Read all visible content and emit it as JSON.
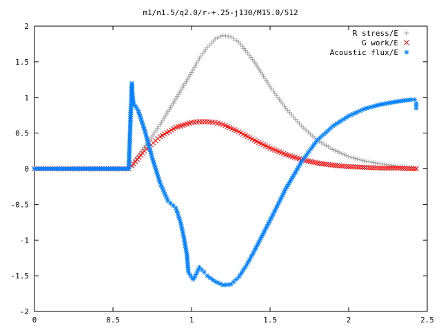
{
  "chart_data": {
    "type": "scatter",
    "title": "m1/n1.5/q2.0/r-+.25-j130/M15.0/512",
    "xlabel": "",
    "ylabel": "",
    "xlim": [
      0,
      2.5
    ],
    "ylim": [
      -2,
      2
    ],
    "xticks": [
      0,
      0.5,
      1,
      1.5,
      2,
      2.5
    ],
    "xtick_labels": [
      "0",
      "0.5",
      "1",
      "1.5",
      "2",
      "2.5"
    ],
    "yticks": [
      -2,
      -1.5,
      -1,
      -0.5,
      0,
      0.5,
      1,
      1.5,
      2
    ],
    "ytick_labels": [
      "-2",
      "-1.5",
      "-1",
      "-0.5",
      "0",
      "0.5",
      "1",
      "1.5",
      "2"
    ],
    "grid": false,
    "legend_position": "top-right",
    "series": [
      {
        "name": "R stress/E",
        "marker": "+",
        "color": "#a0a0a0",
        "x": [
          0,
          0.1,
          0.2,
          0.3,
          0.4,
          0.5,
          0.6,
          0.62,
          0.7,
          0.8,
          0.9,
          1.0,
          1.05,
          1.1,
          1.15,
          1.2,
          1.25,
          1.3,
          1.4,
          1.5,
          1.6,
          1.7,
          1.8,
          1.9,
          2.0,
          2.1,
          2.2,
          2.3,
          2.4,
          2.43
        ],
        "y": [
          0,
          0,
          0,
          0,
          0,
          0,
          0,
          0.05,
          0.3,
          0.62,
          0.98,
          1.35,
          1.55,
          1.7,
          1.82,
          1.87,
          1.85,
          1.78,
          1.5,
          1.15,
          0.85,
          0.6,
          0.4,
          0.27,
          0.17,
          0.11,
          0.07,
          0.04,
          0.02,
          0.01
        ]
      },
      {
        "name": "G work/E",
        "marker": "x",
        "color": "#ff0000",
        "x": [
          0,
          0.1,
          0.2,
          0.3,
          0.4,
          0.5,
          0.6,
          0.62,
          0.7,
          0.8,
          0.9,
          1.0,
          1.05,
          1.1,
          1.15,
          1.2,
          1.3,
          1.4,
          1.5,
          1.6,
          1.7,
          1.8,
          1.9,
          2.0,
          2.1,
          2.2,
          2.3,
          2.4,
          2.43
        ],
        "y": [
          0,
          0,
          0,
          0,
          0,
          0,
          0,
          0.04,
          0.25,
          0.45,
          0.58,
          0.65,
          0.66,
          0.66,
          0.65,
          0.62,
          0.52,
          0.4,
          0.29,
          0.2,
          0.13,
          0.08,
          0.05,
          0.03,
          0.02,
          0.01,
          0.01,
          0,
          0
        ]
      },
      {
        "name": "Acoustic flux/E",
        "marker": "*",
        "color": "#0080ff",
        "x": [
          0,
          0.1,
          0.2,
          0.3,
          0.4,
          0.5,
          0.6,
          0.62,
          0.62,
          0.63,
          0.66,
          0.7,
          0.75,
          0.8,
          0.85,
          0.9,
          0.93,
          0.95,
          0.97,
          0.98,
          1.0,
          1.01,
          1.02,
          1.05,
          1.08,
          1.1,
          1.15,
          1.2,
          1.25,
          1.3,
          1.35,
          1.4,
          1.5,
          1.6,
          1.7,
          1.8,
          1.9,
          2.0,
          2.1,
          2.2,
          2.3,
          2.4,
          2.42,
          2.43,
          2.43
        ],
        "y": [
          0,
          0,
          0,
          0,
          0,
          0,
          0,
          1.2,
          1.1,
          0.92,
          0.82,
          0.55,
          0.15,
          -0.2,
          -0.45,
          -0.55,
          -0.75,
          -0.95,
          -1.2,
          -1.45,
          -1.52,
          -1.55,
          -1.52,
          -1.38,
          -1.45,
          -1.5,
          -1.58,
          -1.63,
          -1.62,
          -1.52,
          -1.35,
          -1.15,
          -0.72,
          -0.28,
          0.1,
          0.4,
          0.6,
          0.74,
          0.84,
          0.9,
          0.94,
          0.97,
          0.97,
          0.92,
          0.85
        ]
      }
    ]
  }
}
